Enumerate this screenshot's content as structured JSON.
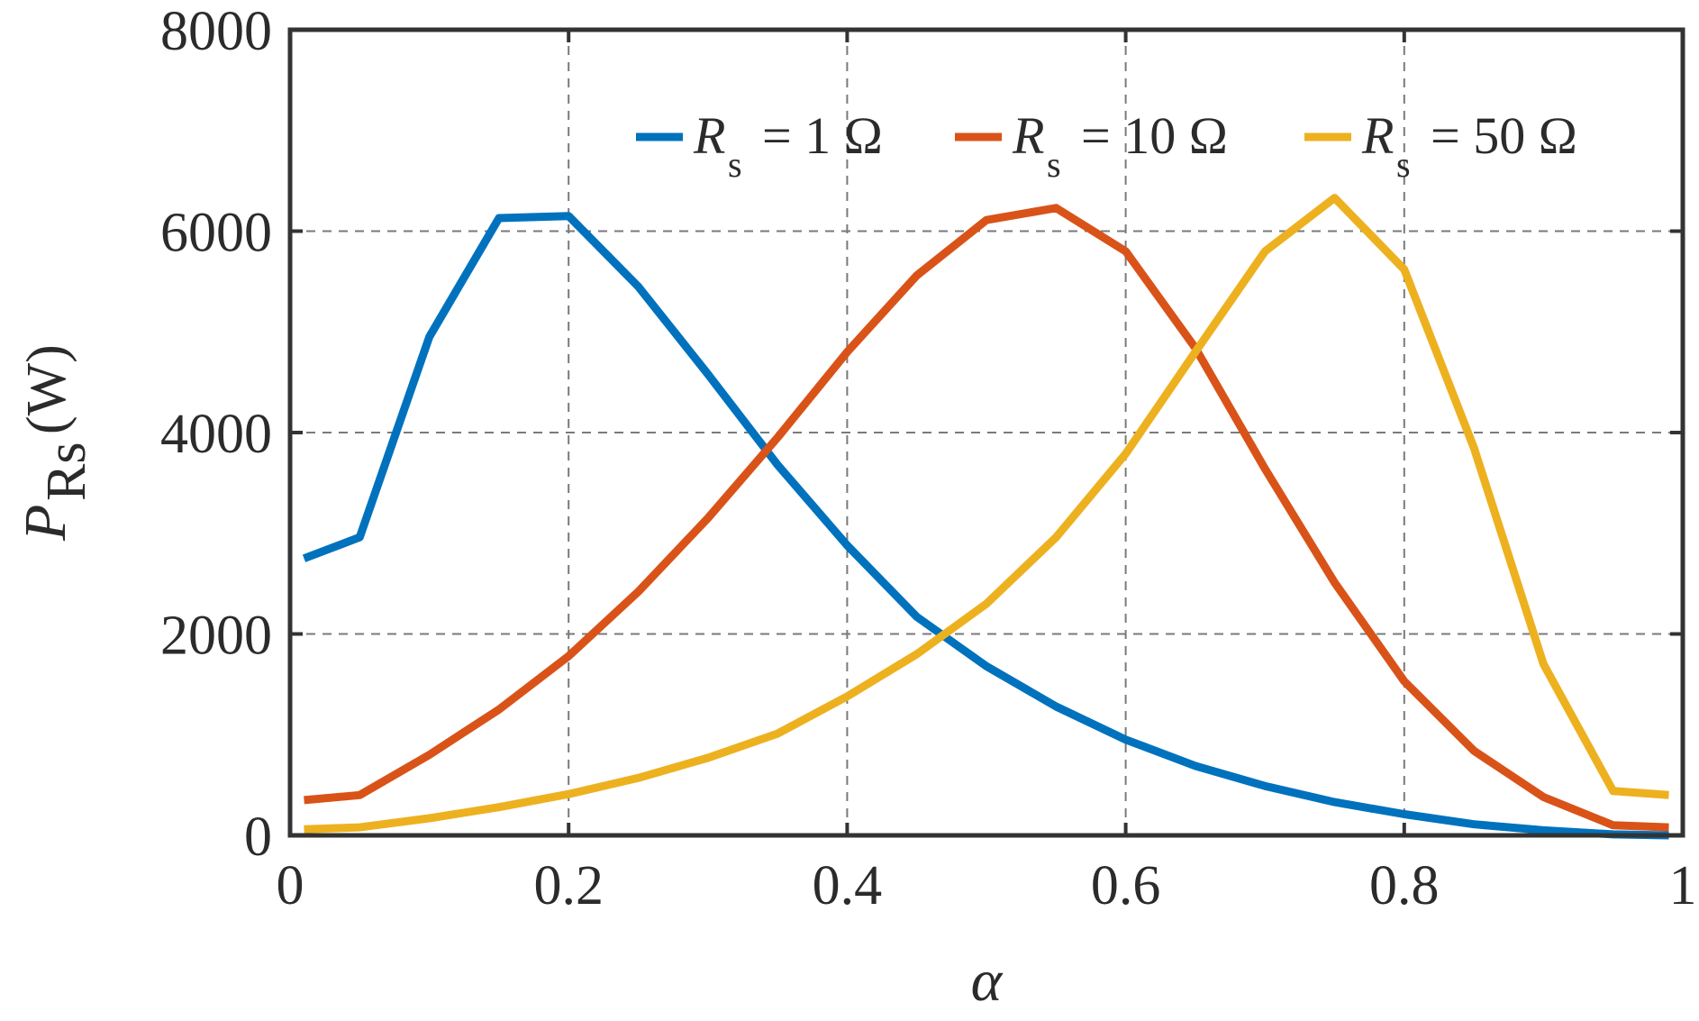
{
  "chart_data": {
    "type": "line",
    "title": "",
    "xlabel": "α",
    "ylabel": {
      "main": "P",
      "subscript": "Rs",
      "unit": "(W)"
    },
    "xlim": [
      0,
      1
    ],
    "ylim": [
      0,
      8000
    ],
    "xticks": [
      0,
      0.2,
      0.4,
      0.6,
      0.8,
      1
    ],
    "xtick_labels": [
      "0",
      "0.2",
      "0.4",
      "0.6",
      "0.8",
      "1"
    ],
    "yticks": [
      0,
      2000,
      4000,
      6000,
      8000
    ],
    "ytick_labels": [
      "0",
      "2000",
      "4000",
      "6000",
      "8000"
    ],
    "grid": true,
    "legend_position": "top-right",
    "x": [
      0.01,
      0.05,
      0.1,
      0.15,
      0.2,
      0.25,
      0.3,
      0.35,
      0.4,
      0.45,
      0.5,
      0.55,
      0.6,
      0.65,
      0.7,
      0.75,
      0.8,
      0.85,
      0.9,
      0.95,
      0.99
    ],
    "series": [
      {
        "name": "R",
        "name_sub": "s",
        "name_suffix": "= 1 Ω",
        "color": "#0072BD",
        "values": [
          2750,
          2960,
          4950,
          6130,
          6150,
          5450,
          4580,
          3680,
          2880,
          2170,
          1680,
          1280,
          950,
          690,
          490,
          330,
          210,
          110,
          50,
          10,
          0
        ]
      },
      {
        "name": "R",
        "name_sub": "s",
        "name_suffix": "= 10 Ω",
        "color": "#D95319",
        "values": [
          350,
          400,
          800,
          1250,
          1780,
          2420,
          3150,
          3950,
          4800,
          5560,
          6110,
          6230,
          5800,
          4840,
          3640,
          2510,
          1530,
          840,
          380,
          100,
          80
        ]
      },
      {
        "name": "R",
        "name_sub": "s",
        "name_suffix": "= 50 Ω",
        "color": "#EDB120",
        "values": [
          60,
          80,
          170,
          280,
          410,
          570,
          770,
          1010,
          1380,
          1800,
          2300,
          2960,
          3790,
          4800,
          5800,
          6330,
          5620,
          3850,
          1700,
          440,
          400
        ]
      }
    ]
  }
}
